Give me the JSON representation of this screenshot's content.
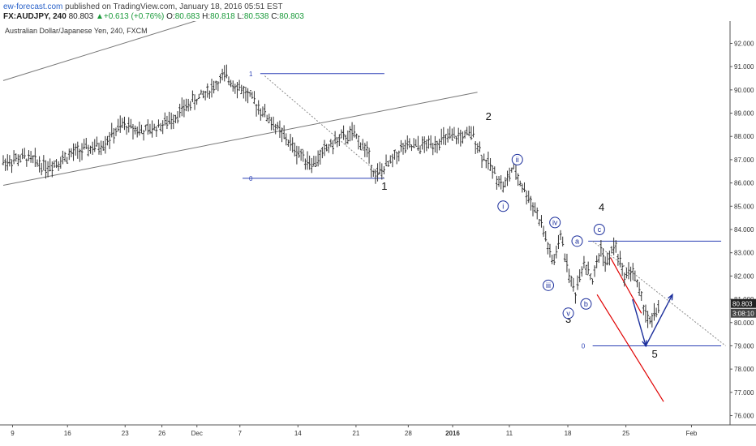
{
  "header": {
    "site": "ew-forecast.com",
    "published": "published on TradingView.com, January 18, 2016 05:51 EST",
    "symbol": "FX:AUDJPY, 240",
    "last": "80.803",
    "change": "+0.613 (+0.76%)",
    "open_label": "O:",
    "open": "80.683",
    "high_label": "H:",
    "high": "80.818",
    "low_label": "L:",
    "low": "80.538",
    "close_label": "C:",
    "close": "80.803"
  },
  "chart_data": {
    "type": "ohlc",
    "title": "Australian Dollar/Japanese Yen, 240, FXCM",
    "xlabel": "",
    "ylabel": "",
    "ylim": [
      75.6,
      92.4
    ],
    "y_ticks": [
      "92.000",
      "91.000",
      "90.000",
      "89.000",
      "88.000",
      "87.000",
      "86.000",
      "85.000",
      "84.000",
      "83.000",
      "82.000",
      "81.000",
      "80.000",
      "79.000",
      "78.000",
      "77.000",
      "76.000"
    ],
    "x_ticks": [
      "9",
      "16",
      "23",
      "26",
      "Dec",
      "7",
      "14",
      "21",
      "28",
      "2016",
      "11",
      "18",
      "25",
      "Feb"
    ],
    "price_tag": "80.803",
    "countdown_tag": "3:08:10",
    "path": [
      [
        0,
        86.9
      ],
      [
        5,
        87.1
      ],
      [
        10,
        86.7
      ],
      [
        16,
        87.3
      ],
      [
        22,
        87.6
      ],
      [
        27,
        88.5
      ],
      [
        32,
        88.2
      ],
      [
        37,
        88.6
      ],
      [
        42,
        89.4
      ],
      [
        46,
        89.9
      ],
      [
        50,
        90.6
      ],
      [
        54,
        90.0
      ],
      [
        58,
        89.2
      ],
      [
        62,
        88.3
      ],
      [
        66,
        87.4
      ],
      [
        70,
        86.8
      ],
      [
        73,
        87.5
      ],
      [
        76,
        87.9
      ],
      [
        79,
        88.1
      ],
      [
        82,
        87.4
      ],
      [
        84,
        86.3
      ],
      [
        87,
        86.8
      ],
      [
        90,
        87.5
      ],
      [
        95,
        87.6
      ],
      [
        100,
        87.9
      ],
      [
        104,
        88.0
      ],
      [
        106,
        88.1
      ],
      [
        108,
        87.2
      ],
      [
        111,
        86.4
      ],
      [
        113,
        85.8
      ],
      [
        115,
        86.7
      ],
      [
        117,
        85.9
      ],
      [
        120,
        84.9
      ],
      [
        122,
        83.9
      ],
      [
        124,
        82.5
      ],
      [
        126,
        83.8
      ],
      [
        127,
        82.6
      ],
      [
        129,
        81.2
      ],
      [
        131,
        82.7
      ],
      [
        133,
        81.8
      ],
      [
        135,
        83.3
      ],
      [
        136,
        82.4
      ],
      [
        138,
        83.4
      ],
      [
        140,
        82.0
      ],
      [
        142,
        82.3
      ],
      [
        144,
        81.0
      ],
      [
        146,
        79.9
      ],
      [
        148,
        80.8
      ]
    ],
    "waves": [
      {
        "label": "1",
        "x": 86,
        "y": 85.7
      },
      {
        "label": "2",
        "x": 109.5,
        "y": 88.7
      },
      {
        "label": "3",
        "x": 127.5,
        "y": 80.0
      },
      {
        "label": "4",
        "x": 135,
        "y": 84.8
      },
      {
        "label": "5",
        "x": 147,
        "y": 78.5
      }
    ],
    "subwaves": [
      {
        "label": "i",
        "x": 112.8,
        "y": 85.0
      },
      {
        "label": "ii",
        "x": 116,
        "y": 87.0
      },
      {
        "label": "iii",
        "x": 123,
        "y": 81.6
      },
      {
        "label": "iv",
        "x": 124.5,
        "y": 84.3
      },
      {
        "label": "v",
        "x": 127.5,
        "y": 80.4
      },
      {
        "label": "a",
        "x": 129.5,
        "y": 83.5
      },
      {
        "label": "b",
        "x": 131.5,
        "y": 80.8
      },
      {
        "label": "c",
        "x": 134.5,
        "y": 84.0
      }
    ],
    "fib_labels": [
      {
        "label": "1",
        "x": 57,
        "y": 90.7
      },
      {
        "label": "0",
        "x": 57,
        "y": 86.2
      },
      {
        "label": "0",
        "x": 132,
        "y": 79.0
      }
    ],
    "levels": [
      {
        "y": 90.7,
        "x1": 58,
        "x2": 86
      },
      {
        "y": 86.2,
        "x1": 54,
        "x2": 86
      },
      {
        "y": 83.5,
        "x1": 132,
        "x2": 162
      },
      {
        "y": 79.0,
        "x1": 133,
        "x2": 162
      }
    ],
    "channel": [
      {
        "x1": 0,
        "y1": 90.4,
        "x2": 44,
        "y2": 93.0
      },
      {
        "x1": 0,
        "y1": 85.9,
        "x2": 107,
        "y2": 89.9
      }
    ],
    "diagonals": [
      {
        "x1": 59,
        "y1": 90.6,
        "x2": 86,
        "y2": 86.2
      },
      {
        "x1": 133,
        "y1": 83.5,
        "x2": 163,
        "y2": 79.0
      }
    ],
    "wedge": [
      {
        "x1": 134,
        "y1": 81.2,
        "x2": 149,
        "y2": 76.6
      },
      {
        "x1": 137,
        "y1": 82.8,
        "x2": 144,
        "y2": 80.4
      }
    ],
    "projection": [
      [
        142,
        81.0
      ],
      [
        145,
        79.0
      ],
      [
        151,
        81.2
      ]
    ]
  }
}
